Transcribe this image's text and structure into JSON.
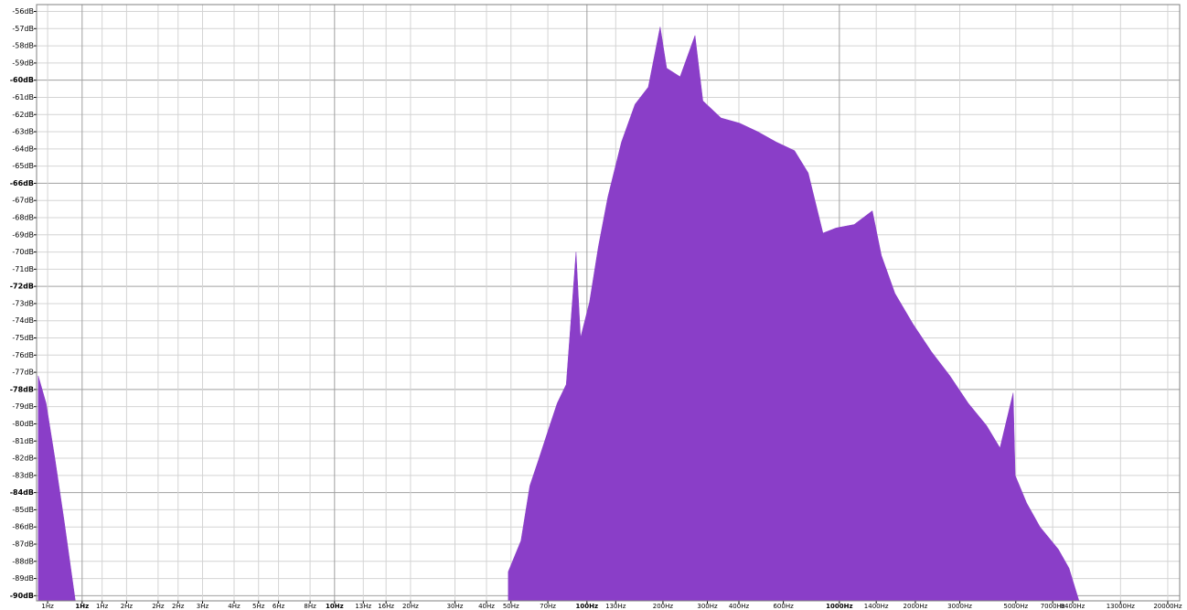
{
  "chart_data": {
    "type": "area",
    "xscale": "log",
    "grid": true,
    "color": "#8a3ec8",
    "xlim": [
      0.66,
      22300
    ],
    "ylim": [
      -90.3,
      -55.6
    ],
    "xticks": [
      {
        "value": 0.73,
        "label": "1Hz"
      },
      {
        "value": 1,
        "label": "1Hz"
      },
      {
        "value": 1.2,
        "label": "1Hz"
      },
      {
        "value": 1.5,
        "label": "2Hz"
      },
      {
        "value": 2,
        "label": "2Hz"
      },
      {
        "value": 2.4,
        "label": "2Hz"
      },
      {
        "value": 3,
        "label": "3Hz"
      },
      {
        "value": 4,
        "label": "4Hz"
      },
      {
        "value": 5,
        "label": "5Hz"
      },
      {
        "value": 6,
        "label": "6Hz"
      },
      {
        "value": 8,
        "label": "8Hz"
      },
      {
        "value": 10,
        "label": "10Hz"
      },
      {
        "value": 13,
        "label": "13Hz"
      },
      {
        "value": 16,
        "label": "16Hz"
      },
      {
        "value": 20,
        "label": "20Hz"
      },
      {
        "value": 30,
        "label": "30Hz"
      },
      {
        "value": 40,
        "label": "40Hz"
      },
      {
        "value": 50,
        "label": "50Hz"
      },
      {
        "value": 70,
        "label": "70Hz"
      },
      {
        "value": 100,
        "label": "100Hz"
      },
      {
        "value": 130,
        "label": "130Hz"
      },
      {
        "value": 200,
        "label": "200Hz"
      },
      {
        "value": 300,
        "label": "300Hz"
      },
      {
        "value": 400,
        "label": "400Hz"
      },
      {
        "value": 600,
        "label": "600Hz"
      },
      {
        "value": 1000,
        "label": "1000Hz"
      },
      {
        "value": 1400,
        "label": "1400Hz"
      },
      {
        "value": 2000,
        "label": "2000Hz"
      },
      {
        "value": 3000,
        "label": "3000Hz"
      },
      {
        "value": 5000,
        "label": "5000Hz"
      },
      {
        "value": 7000,
        "label": "7000Hz"
      },
      {
        "value": 8400,
        "label": "8400Hz"
      },
      {
        "value": 13000,
        "label": "13000Hz"
      },
      {
        "value": 20000,
        "label": "20000Hz"
      }
    ],
    "yticks": [
      {
        "value": -56,
        "label": "-56dB"
      },
      {
        "value": -57,
        "label": "-57dB"
      },
      {
        "value": -58,
        "label": "-58dB"
      },
      {
        "value": -59,
        "label": "-59dB"
      },
      {
        "value": -60,
        "label": "-60dB"
      },
      {
        "value": -61,
        "label": "-61dB"
      },
      {
        "value": -62,
        "label": "-62dB"
      },
      {
        "value": -63,
        "label": "-63dB"
      },
      {
        "value": -64,
        "label": "-64dB"
      },
      {
        "value": -65,
        "label": "-65dB"
      },
      {
        "value": -66,
        "label": "-66dB"
      },
      {
        "value": -67,
        "label": "-67dB"
      },
      {
        "value": -68,
        "label": "-68dB"
      },
      {
        "value": -69,
        "label": "-69dB"
      },
      {
        "value": -70,
        "label": "-70dB"
      },
      {
        "value": -71,
        "label": "-71dB"
      },
      {
        "value": -72,
        "label": "-72dB"
      },
      {
        "value": -73,
        "label": "-73dB"
      },
      {
        "value": -74,
        "label": "-74dB"
      },
      {
        "value": -75,
        "label": "-75dB"
      },
      {
        "value": -76,
        "label": "-76dB"
      },
      {
        "value": -77,
        "label": "-77dB"
      },
      {
        "value": -78,
        "label": "-78dB"
      },
      {
        "value": -79,
        "label": "-79dB"
      },
      {
        "value": -80,
        "label": "-80dB"
      },
      {
        "value": -81,
        "label": "-81dB"
      },
      {
        "value": -82,
        "label": "-82dB"
      },
      {
        "value": -83,
        "label": "-83dB"
      },
      {
        "value": -84,
        "label": "-84dB"
      },
      {
        "value": -85,
        "label": "-85dB"
      },
      {
        "value": -86,
        "label": "-86dB"
      },
      {
        "value": -87,
        "label": "-87dB"
      },
      {
        "value": -88,
        "label": "-88dB"
      },
      {
        "value": -89,
        "label": "-89dB"
      },
      {
        "value": -90,
        "label": "-90dB"
      }
    ],
    "x": [
      0.67,
      0.72,
      0.78,
      0.85,
      0.94,
      20,
      48.8,
      54.8,
      59.4,
      64.6,
      70.1,
      76.2,
      82.8,
      90.5,
      94.3,
      102.4,
      111,
      121,
      137,
      155,
      175,
      195,
      207,
      234,
      268,
      288,
      340,
      402,
      475,
      562,
      664,
      753,
      861,
      970,
      1144,
      1351,
      1467,
      1660,
      1960,
      2318,
      2740,
      3240,
      3830,
      4330,
      4880,
      4970,
      5520,
      6240,
      7370,
      8130,
      8900
    ],
    "values": [
      -77.2,
      -78.8,
      -82.0,
      -85.7,
      -90.3,
      null,
      -88.6,
      -86.8,
      -83.6,
      -82.0,
      -80.4,
      -78.8,
      -77.7,
      -70.0,
      -75.0,
      -72.9,
      -69.7,
      -66.8,
      -63.6,
      -61.4,
      -60.4,
      -56.9,
      -59.3,
      -59.8,
      -57.4,
      -61.2,
      -62.2,
      -62.5,
      -63.0,
      -63.6,
      -64.1,
      -65.4,
      -68.9,
      -68.6,
      -68.4,
      -67.6,
      -70.2,
      -72.4,
      -74.2,
      -75.8,
      -77.2,
      -78.8,
      -80.1,
      -81.4,
      -78.2,
      -83.0,
      -84.6,
      -86.0,
      -87.3,
      -88.4,
      -90.3
    ]
  }
}
